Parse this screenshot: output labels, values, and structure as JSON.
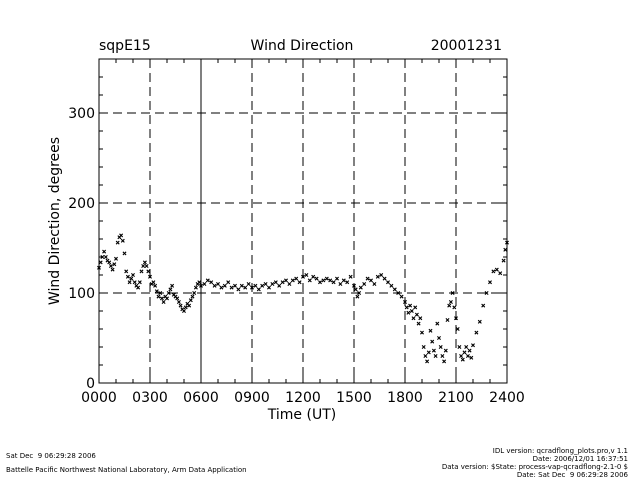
{
  "chart_data": {
    "type": "scatter",
    "site": "sqpE15",
    "title": "Wind Direction",
    "date": "20001231",
    "xlabel": "Time (UT)",
    "ylabel": "Wind Direction, degrees",
    "xlim": [
      0,
      24
    ],
    "ylim": [
      0,
      360
    ],
    "x_ticks": [
      {
        "value": 0,
        "label": "0000"
      },
      {
        "value": 3,
        "label": "0300"
      },
      {
        "value": 6,
        "label": "0600"
      },
      {
        "value": 9,
        "label": "0900"
      },
      {
        "value": 12,
        "label": "1200"
      },
      {
        "value": 15,
        "label": "1500"
      },
      {
        "value": 18,
        "label": "1800"
      },
      {
        "value": 21,
        "label": "2100"
      },
      {
        "value": 24,
        "label": "2400"
      }
    ],
    "y_ticks": [
      {
        "value": 0,
        "label": "0"
      },
      {
        "value": 100,
        "label": "100"
      },
      {
        "value": 200,
        "label": "200"
      },
      {
        "value": 300,
        "label": "300"
      }
    ],
    "dashed_gridlines_x": [
      3,
      9,
      12,
      15,
      18,
      21
    ],
    "solid_gridlines_x": [
      6
    ],
    "dashed_gridlines_y": [
      100,
      200,
      300
    ],
    "series": [
      {
        "name": "wind_direction",
        "marker": "x",
        "points": [
          [
            0.0,
            128
          ],
          [
            0.1,
            134
          ],
          [
            0.2,
            140
          ],
          [
            0.3,
            146
          ],
          [
            0.4,
            140
          ],
          [
            0.5,
            136
          ],
          [
            0.6,
            134
          ],
          [
            0.7,
            130
          ],
          [
            0.8,
            126
          ],
          [
            0.9,
            132
          ],
          [
            1.0,
            138
          ],
          [
            1.1,
            156
          ],
          [
            1.2,
            162
          ],
          [
            1.3,
            164
          ],
          [
            1.4,
            158
          ],
          [
            1.5,
            144
          ],
          [
            1.6,
            124
          ],
          [
            1.7,
            118
          ],
          [
            1.8,
            112
          ],
          [
            1.9,
            116
          ],
          [
            2.0,
            120
          ],
          [
            2.1,
            112
          ],
          [
            2.2,
            108
          ],
          [
            2.3,
            106
          ],
          [
            2.4,
            112
          ],
          [
            2.5,
            124
          ],
          [
            2.6,
            130
          ],
          [
            2.7,
            134
          ],
          [
            2.8,
            130
          ],
          [
            2.9,
            124
          ],
          [
            3.0,
            118
          ],
          [
            3.1,
            110
          ],
          [
            3.2,
            112
          ],
          [
            3.3,
            108
          ],
          [
            3.4,
            102
          ],
          [
            3.5,
            96
          ],
          [
            3.6,
            100
          ],
          [
            3.7,
            94
          ],
          [
            3.8,
            90
          ],
          [
            3.9,
            96
          ],
          [
            4.0,
            94
          ],
          [
            4.1,
            100
          ],
          [
            4.2,
            104
          ],
          [
            4.3,
            108
          ],
          [
            4.4,
            98
          ],
          [
            4.5,
            96
          ],
          [
            4.6,
            94
          ],
          [
            4.7,
            90
          ],
          [
            4.8,
            86
          ],
          [
            4.9,
            82
          ],
          [
            5.0,
            80
          ],
          [
            5.1,
            84
          ],
          [
            5.2,
            88
          ],
          [
            5.3,
            86
          ],
          [
            5.4,
            92
          ],
          [
            5.5,
            96
          ],
          [
            5.6,
            100
          ],
          [
            5.7,
            106
          ],
          [
            5.8,
            110
          ],
          [
            5.9,
            112
          ],
          [
            6.0,
            108
          ],
          [
            6.2,
            110
          ],
          [
            6.4,
            114
          ],
          [
            6.6,
            112
          ],
          [
            6.8,
            108
          ],
          [
            7.0,
            110
          ],
          [
            7.2,
            106
          ],
          [
            7.4,
            108
          ],
          [
            7.6,
            112
          ],
          [
            7.8,
            106
          ],
          [
            8.0,
            108
          ],
          [
            8.2,
            104
          ],
          [
            8.4,
            108
          ],
          [
            8.6,
            106
          ],
          [
            8.8,
            110
          ],
          [
            9.0,
            106
          ],
          [
            9.2,
            108
          ],
          [
            9.4,
            104
          ],
          [
            9.6,
            108
          ],
          [
            9.8,
            110
          ],
          [
            10.0,
            106
          ],
          [
            10.2,
            110
          ],
          [
            10.4,
            112
          ],
          [
            10.6,
            108
          ],
          [
            10.8,
            112
          ],
          [
            11.0,
            114
          ],
          [
            11.2,
            110
          ],
          [
            11.4,
            114
          ],
          [
            11.6,
            116
          ],
          [
            11.8,
            112
          ],
          [
            12.0,
            118
          ],
          [
            12.2,
            120
          ],
          [
            12.4,
            114
          ],
          [
            12.6,
            118
          ],
          [
            12.8,
            116
          ],
          [
            13.0,
            112
          ],
          [
            13.2,
            114
          ],
          [
            13.4,
            116
          ],
          [
            13.6,
            114
          ],
          [
            13.8,
            112
          ],
          [
            14.0,
            116
          ],
          [
            14.2,
            110
          ],
          [
            14.4,
            114
          ],
          [
            14.6,
            112
          ],
          [
            14.8,
            118
          ],
          [
            15.0,
            108
          ],
          [
            15.1,
            104
          ],
          [
            15.2,
            96
          ],
          [
            15.3,
            100
          ],
          [
            15.4,
            106
          ],
          [
            15.6,
            110
          ],
          [
            15.8,
            116
          ],
          [
            16.0,
            114
          ],
          [
            16.2,
            110
          ],
          [
            16.4,
            118
          ],
          [
            16.6,
            120
          ],
          [
            16.8,
            116
          ],
          [
            17.0,
            112
          ],
          [
            17.2,
            108
          ],
          [
            17.4,
            104
          ],
          [
            17.6,
            100
          ],
          [
            17.8,
            96
          ],
          [
            18.0,
            90
          ],
          [
            18.1,
            84
          ],
          [
            18.2,
            78
          ],
          [
            18.3,
            86
          ],
          [
            18.4,
            80
          ],
          [
            18.5,
            72
          ],
          [
            18.6,
            84
          ],
          [
            18.7,
            76
          ],
          [
            18.8,
            66
          ],
          [
            18.9,
            72
          ],
          [
            19.0,
            56
          ],
          [
            19.1,
            40
          ],
          [
            19.2,
            30
          ],
          [
            19.3,
            24
          ],
          [
            19.4,
            34
          ],
          [
            19.5,
            58
          ],
          [
            19.6,
            46
          ],
          [
            19.7,
            36
          ],
          [
            19.8,
            30
          ],
          [
            19.9,
            66
          ],
          [
            20.0,
            50
          ],
          [
            20.1,
            40
          ],
          [
            20.2,
            30
          ],
          [
            20.3,
            24
          ],
          [
            20.4,
            36
          ],
          [
            20.5,
            70
          ],
          [
            20.6,
            86
          ],
          [
            20.7,
            90
          ],
          [
            20.8,
            100
          ],
          [
            20.9,
            84
          ],
          [
            21.0,
            72
          ],
          [
            21.1,
            60
          ],
          [
            21.2,
            40
          ],
          [
            21.3,
            30
          ],
          [
            21.4,
            26
          ],
          [
            21.5,
            34
          ],
          [
            21.6,
            40
          ],
          [
            21.7,
            30
          ],
          [
            21.8,
            36
          ],
          [
            21.9,
            28
          ],
          [
            22.0,
            42
          ],
          [
            22.2,
            56
          ],
          [
            22.4,
            68
          ],
          [
            22.6,
            86
          ],
          [
            22.8,
            100
          ],
          [
            23.0,
            112
          ],
          [
            23.2,
            124
          ],
          [
            23.4,
            126
          ],
          [
            23.6,
            122
          ],
          [
            23.8,
            136
          ],
          [
            23.9,
            148
          ],
          [
            24.0,
            156
          ]
        ]
      }
    ]
  },
  "footer": {
    "timestamp": "Sat Dec  9 06:29:28 2006",
    "institution": "Battelle Pacific Northwest National Laboratory, Arm Data Application",
    "idl_version": "IDL version: qcradflong_plots.pro,v 1.1",
    "date_line": "Date: 2006/12/01 16:37:51",
    "data_version": "Data version: $State: process-vap-qcradflong-2.1-0 $",
    "date_sat": "Date: Sat Dec  9 06:29:28 2006"
  }
}
